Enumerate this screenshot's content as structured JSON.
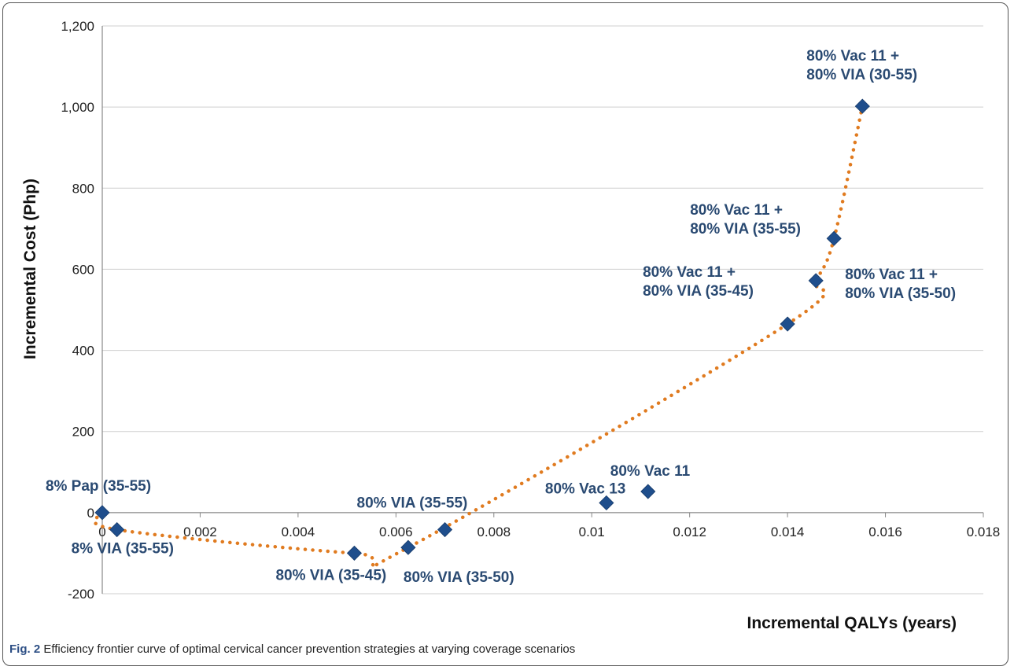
{
  "chart_data": {
    "type": "scatter",
    "xlabel": "Incremental QALYs (years)",
    "ylabel": "Incremental Cost (Php)",
    "xlim": [
      0,
      0.018
    ],
    "ylim": [
      -200,
      1200
    ],
    "x_ticks": [
      "0",
      "0.002",
      "0.004",
      "0.006",
      "0.008",
      "0.01",
      "0.012",
      "0.014",
      "0.016",
      "0.018"
    ],
    "y_ticks": [
      "-200",
      "0",
      "200",
      "400",
      "600",
      "800",
      "1,000",
      "1,200"
    ],
    "grid": "horizontal",
    "marker_color": "#1f4e8c",
    "curve_color": "#e07b20",
    "points": [
      {
        "x": 0.0,
        "y": 0
      },
      {
        "x": 0.0003,
        "y": -42
      },
      {
        "x": 0.00515,
        "y": -100
      },
      {
        "x": 0.00625,
        "y": -86
      },
      {
        "x": 0.007,
        "y": -42
      },
      {
        "x": 0.0103,
        "y": 24
      },
      {
        "x": 0.01115,
        "y": 52
      },
      {
        "x": 0.014,
        "y": 465
      },
      {
        "x": 0.01458,
        "y": 572
      },
      {
        "x": 0.01495,
        "y": 676
      },
      {
        "x": 0.01553,
        "y": 1002
      }
    ],
    "frontier": [
      {
        "x": 0.0,
        "y": 0
      },
      {
        "x": 0.0003,
        "y": -42
      },
      {
        "x": 0.00515,
        "y": -100
      },
      {
        "x": 0.00625,
        "y": -86
      },
      {
        "x": 0.014,
        "y": 465
      },
      {
        "x": 0.01458,
        "y": 572
      },
      {
        "x": 0.01495,
        "y": 676
      },
      {
        "x": 0.01553,
        "y": 1002
      }
    ],
    "annotations": [
      {
        "lines": [
          "8% Pap (35-55)"
        ],
        "x": 0.0,
        "y": 0
      },
      {
        "lines": [
          "8% VIA (35-55)"
        ],
        "x": 0.0003,
        "y": -42
      },
      {
        "lines": [
          "80% VIA (35-45)"
        ],
        "x": 0.00515,
        "y": -100
      },
      {
        "lines": [
          "80% VIA (35-50)"
        ],
        "x": 0.00625,
        "y": -86
      },
      {
        "lines": [
          "80% VIA (35-55)"
        ],
        "x": 0.007,
        "y": -42
      },
      {
        "lines": [
          "80% Vac 13"
        ],
        "x": 0.0103,
        "y": 24
      },
      {
        "lines": [
          "80% Vac 11"
        ],
        "x": 0.01115,
        "y": 52
      },
      {
        "lines": [
          "80% Vac 11 +",
          "80% VIA (35-45)"
        ],
        "x": 0.014,
        "y": 465
      },
      {
        "lines": [
          "80% Vac 11 +",
          "80% VIA (35-55)"
        ],
        "x": 0.01458,
        "y": 572
      },
      {
        "lines": [
          "80% Vac 11 +",
          "80% VIA (35-50)"
        ],
        "x": 0.01495,
        "y": 676
      },
      {
        "lines": [
          "80% Vac 11 +",
          "80% VIA (30-55)"
        ],
        "x": 0.01553,
        "y": 1002
      }
    ]
  },
  "caption": {
    "fig_label": "Fig. 2",
    "text": "Efficiency frontier curve of optimal cervical cancer prevention strategies at varying coverage scenarios"
  }
}
